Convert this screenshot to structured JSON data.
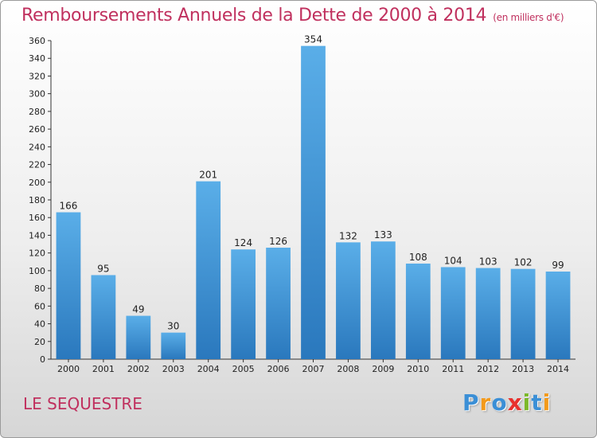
{
  "header": {
    "title": "Remboursements Annuels de la Dette de 2000 à 2014",
    "unit": "(en milliers d'€)"
  },
  "commune": "LE SEQUESTRE",
  "logo": {
    "letters": [
      "P",
      "r",
      "o",
      "x",
      "i",
      "t",
      "i"
    ],
    "colors": [
      "#3b8fd6",
      "#f39a1b",
      "#3b8fd6",
      "#e8302d",
      "#7cb829",
      "#3b8fd6",
      "#f39a1b"
    ]
  },
  "colors": {
    "bar_top": "#5aaee8",
    "bar_bottom": "#2a78bd",
    "title": "#c0305e"
  },
  "chart_data": {
    "type": "bar",
    "title": "Remboursements Annuels de la Dette de 2000 à 2014",
    "xlabel": "",
    "ylabel": "",
    "ylim": [
      0,
      360
    ],
    "yticks": [
      0,
      20,
      40,
      60,
      80,
      100,
      120,
      140,
      160,
      180,
      200,
      220,
      240,
      260,
      280,
      300,
      320,
      340,
      360
    ],
    "grid": false,
    "categories": [
      "2000",
      "2001",
      "2002",
      "2003",
      "2004",
      "2005",
      "2006",
      "2007",
      "2008",
      "2009",
      "2010",
      "2011",
      "2012",
      "2013",
      "2014"
    ],
    "values": [
      166,
      95,
      49,
      30,
      201,
      124,
      126,
      354,
      132,
      133,
      108,
      104,
      103,
      102,
      99
    ]
  }
}
